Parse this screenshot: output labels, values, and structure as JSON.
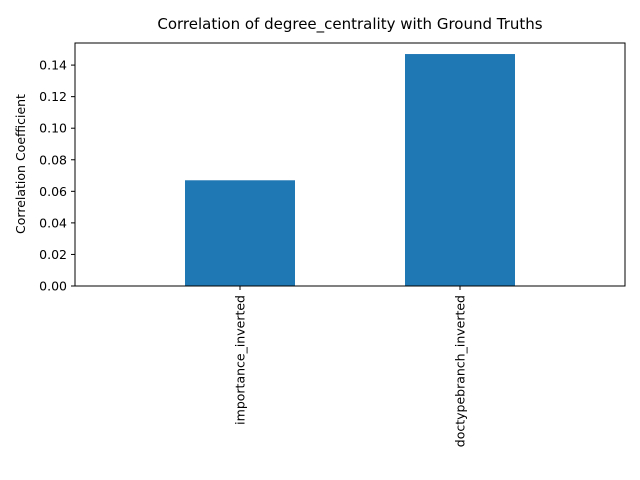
{
  "chart_data": {
    "type": "bar",
    "title": "Correlation of degree_centrality with Ground Truths",
    "xlabel": "",
    "ylabel": "Correlation Coefficient",
    "categories": [
      "importance_inverted",
      "doctypebranch_inverted"
    ],
    "values": [
      0.067,
      0.147
    ],
    "ylim": [
      0,
      0.154
    ],
    "yticks": [
      0.0,
      0.02,
      0.04,
      0.06,
      0.08,
      0.1,
      0.12,
      0.14
    ],
    "ytick_labels": [
      "0.00",
      "0.02",
      "0.04",
      "0.06",
      "0.08",
      "0.10",
      "0.12",
      "0.14"
    ],
    "grid": false,
    "legend": "none",
    "bar_color": "#1f77b4"
  }
}
